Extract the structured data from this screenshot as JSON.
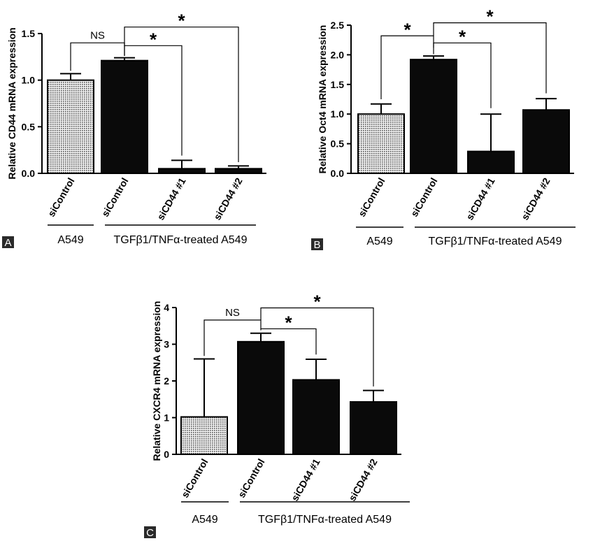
{
  "panel_labels": [
    "A",
    "B",
    "C"
  ],
  "colors": {
    "bar_fill": "#0a0a0a",
    "control_fill": "#d8d8d8",
    "axis": "#000000",
    "label_bg": "#2a2a2a",
    "label_text": "#ffffff"
  },
  "chart_data": [
    {
      "type": "bar",
      "panel": "A",
      "ylabel": "Relative CD44 mRNA expression",
      "categories": [
        "siControl",
        "siControl",
        "siCD44 #1",
        "siCD44 #2"
      ],
      "values": [
        1.0,
        1.21,
        0.05,
        0.05
      ],
      "errors": [
        0.07,
        0.03,
        0.09,
        0.03
      ],
      "ylim": [
        0,
        1.5
      ],
      "yticks": [
        "0.0",
        "0.5",
        "1.0",
        "1.5"
      ],
      "pattern": [
        "dotted",
        "solid",
        "solid",
        "solid"
      ],
      "groups": [
        {
          "label": "A549",
          "from": 0,
          "to": 0
        },
        {
          "label": "TGFβ1/TNFα-treated A549",
          "from": 1,
          "to": 3
        }
      ],
      "significance": [
        {
          "from": 0,
          "to": 1,
          "label": "NS",
          "y": 1.4,
          "yl": 1.1,
          "yr": 1.26
        },
        {
          "from": 1,
          "to": 2,
          "label": "*",
          "y": 1.37,
          "yl": 1.26,
          "yr": 0.19
        },
        {
          "from": 1,
          "to": 3,
          "label": "*",
          "y": 1.57,
          "yl": 1.37,
          "yr": 0.12
        }
      ]
    },
    {
      "type": "bar",
      "panel": "B",
      "ylabel": "Relative Oct4 mRNA expression",
      "categories": [
        "siControl",
        "siControl",
        "siCD44 #1",
        "siCD44 #2"
      ],
      "values": [
        1.0,
        1.92,
        0.37,
        1.07
      ],
      "errors": [
        0.17,
        0.06,
        0.63,
        0.19
      ],
      "ylim": [
        0,
        2.5
      ],
      "yticks": [
        "0.0",
        "0.5",
        "1.0",
        "1.5",
        "2.0",
        "2.5"
      ],
      "pattern": [
        "dotted",
        "solid",
        "solid",
        "solid"
      ],
      "groups": [
        {
          "label": "A549",
          "from": 0,
          "to": 0
        },
        {
          "label": "TGFβ1/TNFα-treated A549",
          "from": 1,
          "to": 3
        }
      ],
      "significance": [
        {
          "from": 0,
          "to": 1,
          "label": "*",
          "y": 2.32,
          "yl": 1.25,
          "yr": 2.01
        },
        {
          "from": 1,
          "to": 2,
          "label": "*",
          "y": 2.2,
          "yl": 2.12,
          "yr": 1.1
        },
        {
          "from": 1,
          "to": 3,
          "label": "*",
          "y": 2.54,
          "yl": 2.32,
          "yr": 1.35
        }
      ]
    },
    {
      "type": "bar",
      "panel": "C",
      "ylabel": "Relative CXCR4 mRNA expression",
      "categories": [
        "siControl",
        "siControl",
        "siCD44 #1",
        "siCD44 #2"
      ],
      "values": [
        1.02,
        3.07,
        2.03,
        1.43
      ],
      "errors": [
        1.58,
        0.23,
        0.56,
        0.31
      ],
      "ylim": [
        0,
        4
      ],
      "yticks": [
        "0",
        "1",
        "2",
        "3",
        "4"
      ],
      "pattern": [
        "dotted",
        "solid",
        "solid",
        "solid"
      ],
      "groups": [
        {
          "label": "A549",
          "from": 0,
          "to": 0
        },
        {
          "label": "TGFβ1/TNFα-treated A549",
          "from": 1,
          "to": 3
        }
      ],
      "significance": [
        {
          "from": 0,
          "to": 1,
          "label": "NS",
          "y": 3.66,
          "yl": 2.68,
          "yr": 3.41
        },
        {
          "from": 1,
          "to": 2,
          "label": "*",
          "y": 3.42,
          "yl": 3.38,
          "yr": 2.72
        },
        {
          "from": 1,
          "to": 3,
          "label": "*",
          "y": 3.99,
          "yl": 3.66,
          "yr": 1.85
        }
      ]
    }
  ]
}
